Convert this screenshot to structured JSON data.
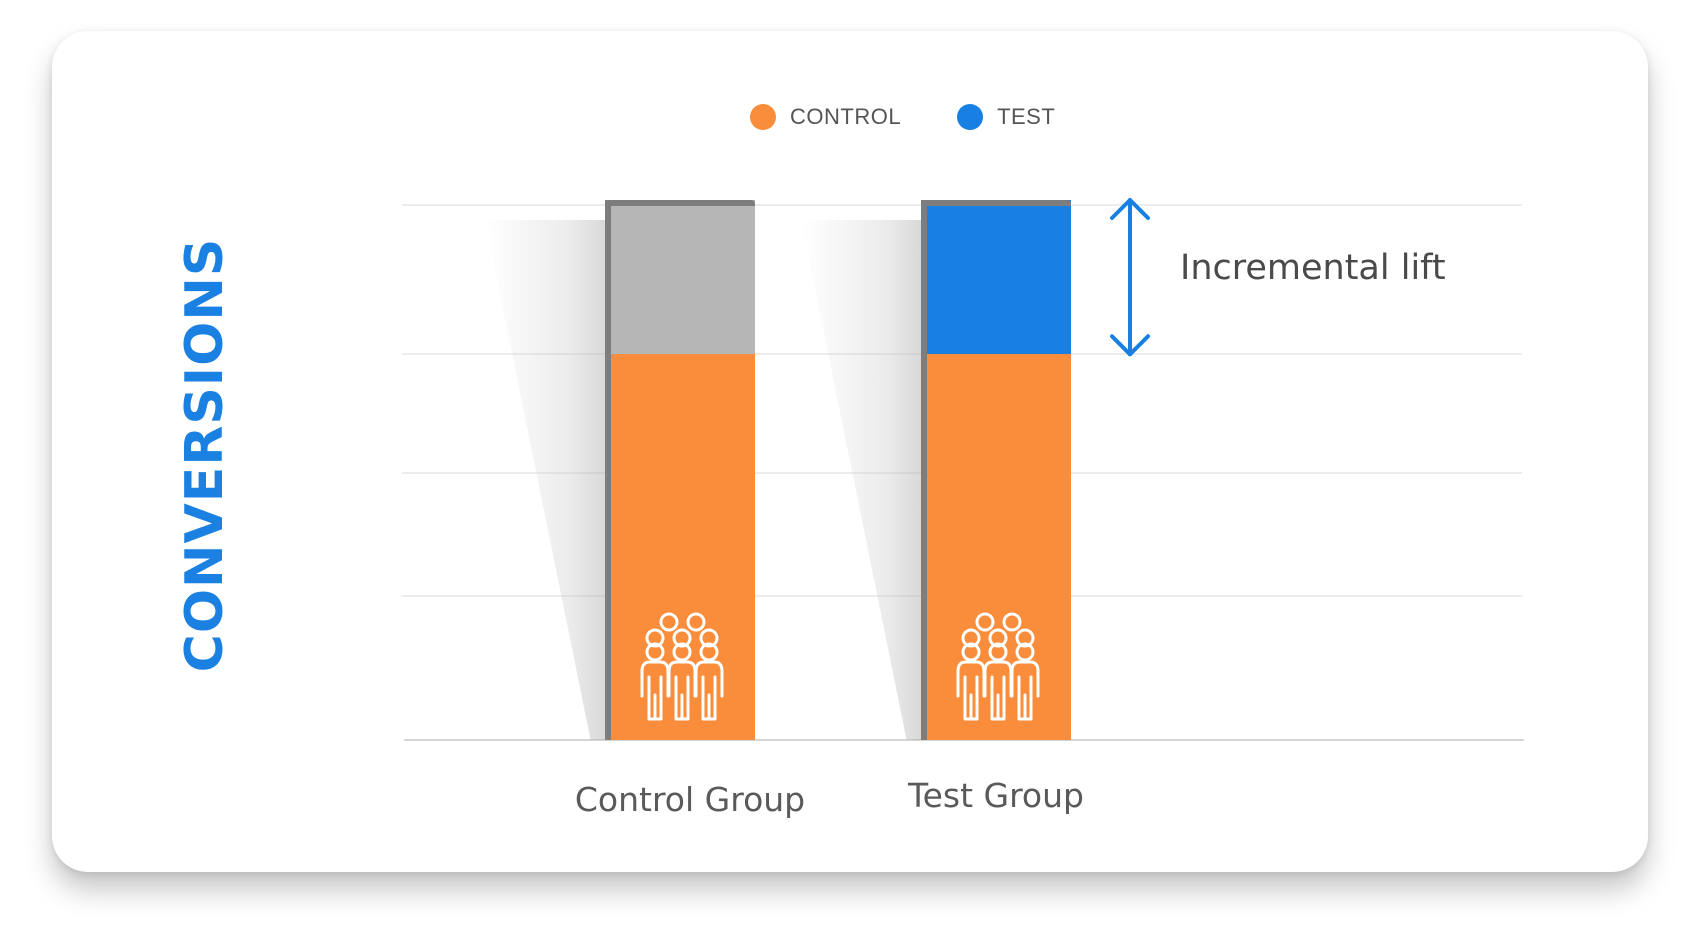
{
  "chart_data": {
    "type": "bar",
    "ylabel": "CONVERSIONS",
    "categories": [
      "Control Group",
      "Test Group"
    ],
    "series": [
      {
        "name": "CONTROL",
        "color": "#f98d3b",
        "values": [
          75,
          75
        ]
      },
      {
        "name": "TEST",
        "color": "#1880e2",
        "values": [
          0,
          30
        ]
      }
    ],
    "control_group_remainder": {
      "color": "#b6b6b6",
      "value": 30
    },
    "bar_total": 105,
    "ylim": [
      0,
      105
    ],
    "gridlines": [
      0,
      28,
      52,
      75,
      104
    ],
    "grid": true,
    "legend_position": "top-center",
    "annotation": {
      "text": "Incremental lift",
      "icon": "double-arrow-vertical",
      "color": "#1880e2"
    },
    "bar_icon": "people-group-icon",
    "colors": {
      "title": "#1a80e2",
      "gray": "#b6b6b6",
      "edge": "#7d7d7d",
      "grid": "#ececec",
      "axis": "#d5d5d5"
    }
  }
}
